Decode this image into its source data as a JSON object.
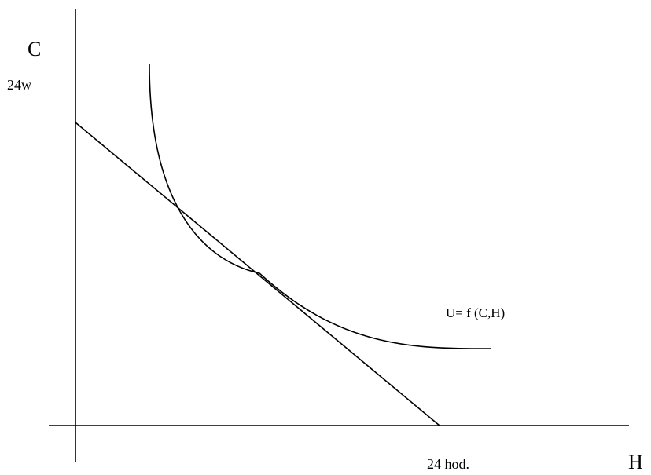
{
  "diagram": {
    "y_axis_label": "C",
    "x_axis_label": "H",
    "y_intercept_label": "24w",
    "x_intercept_label": "24 hod.",
    "curve_label": "U= f (C,H)"
  },
  "colors": {
    "stroke": "#000000",
    "background": "#ffffff"
  }
}
